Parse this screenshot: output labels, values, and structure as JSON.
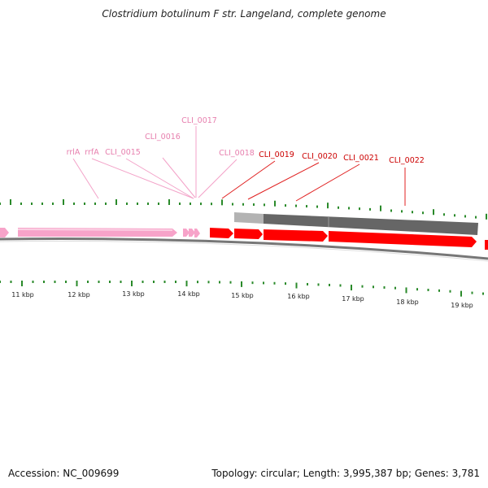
{
  "title": "Clostridium botulinum F str. Langeland, complete genome",
  "footer": {
    "accession": "Accession: NC_009699",
    "summary": "Topology: circular; Length: 3,995,387 bp; Genes: 3,781"
  },
  "colors": {
    "rna_gene": "#f7a3c9",
    "rna_label": "#e77fae",
    "cds_gene": "#ff0000",
    "cds_label": "#cc0000",
    "pseudo_bar": "#666666",
    "pseudo_bar_light": "#b3b3b3",
    "tick": "#2a8a2a",
    "backbone": "#777777"
  },
  "scale_labels": [
    "11 kbp",
    "12 kbp",
    "13 kbp",
    "14 kbp",
    "15 kbp",
    "16 kbp",
    "17 kbp",
    "18 kbp",
    "19 kbp"
  ],
  "gene_labels": [
    {
      "text": "rrlA",
      "kind": "rna"
    },
    {
      "text": "rrfA",
      "kind": "rna"
    },
    {
      "text": "CLI_0015",
      "kind": "rna"
    },
    {
      "text": "CLI_0016",
      "kind": "rna"
    },
    {
      "text": "CLI_0017",
      "kind": "rna"
    },
    {
      "text": "CLI_0018",
      "kind": "rna"
    },
    {
      "text": "CLI_0019",
      "kind": "cds"
    },
    {
      "text": "CLI_0020",
      "kind": "cds"
    },
    {
      "text": "CLI_0021",
      "kind": "cds"
    },
    {
      "text": "CLI_0022",
      "kind": "cds"
    }
  ]
}
